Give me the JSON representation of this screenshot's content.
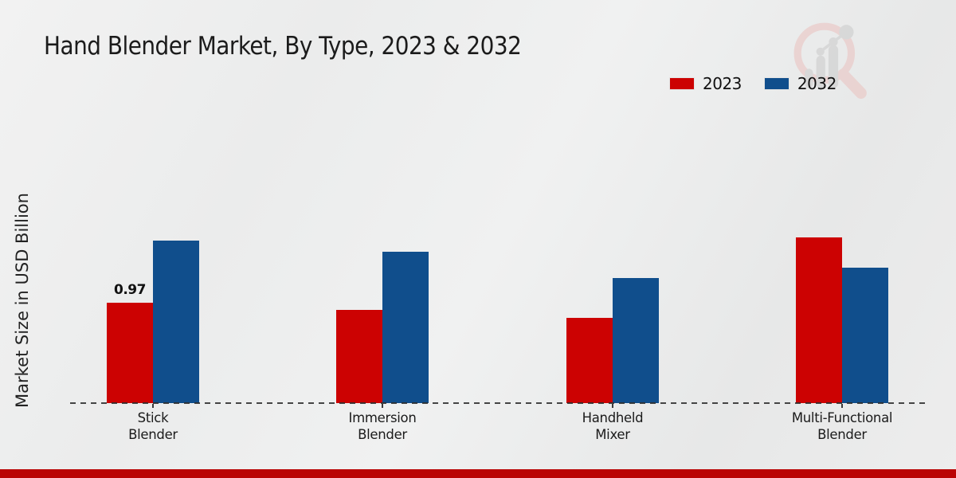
{
  "title": "Hand Blender Market, By Type, 2023 & 2032",
  "y_axis_label": "Market Size in USD Billion",
  "legend": {
    "items": [
      {
        "label": "2023",
        "color": "#cc0202"
      },
      {
        "label": "2032",
        "color": "#104e8c"
      }
    ]
  },
  "watermark_icon": "magnifier-growth-chart-logo",
  "footer": {
    "bar_color": "#ba0404"
  },
  "chart_data": {
    "type": "bar",
    "title": "Hand Blender Market, By Type, 2023 & 2032",
    "xlabel": "",
    "ylabel": "Market Size in USD Billion",
    "categories": [
      "Stick\nBlender",
      "Immersion\nBlender",
      "Handheld\nMixer",
      "Multi-Functional\nBlender"
    ],
    "series": [
      {
        "name": "2023",
        "color": "#cc0202",
        "values": [
          0.97,
          0.9,
          0.82,
          1.6
        ]
      },
      {
        "name": "2032",
        "color": "#104e8c",
        "values": [
          1.57,
          1.46,
          1.21,
          1.31
        ]
      }
    ],
    "data_label": {
      "series_index": 0,
      "category_index": 0,
      "text": "0.97"
    },
    "ylim": [
      0,
      2.0
    ],
    "grid": false,
    "baseline_style": "dashed",
    "legend_position": "top-right"
  }
}
